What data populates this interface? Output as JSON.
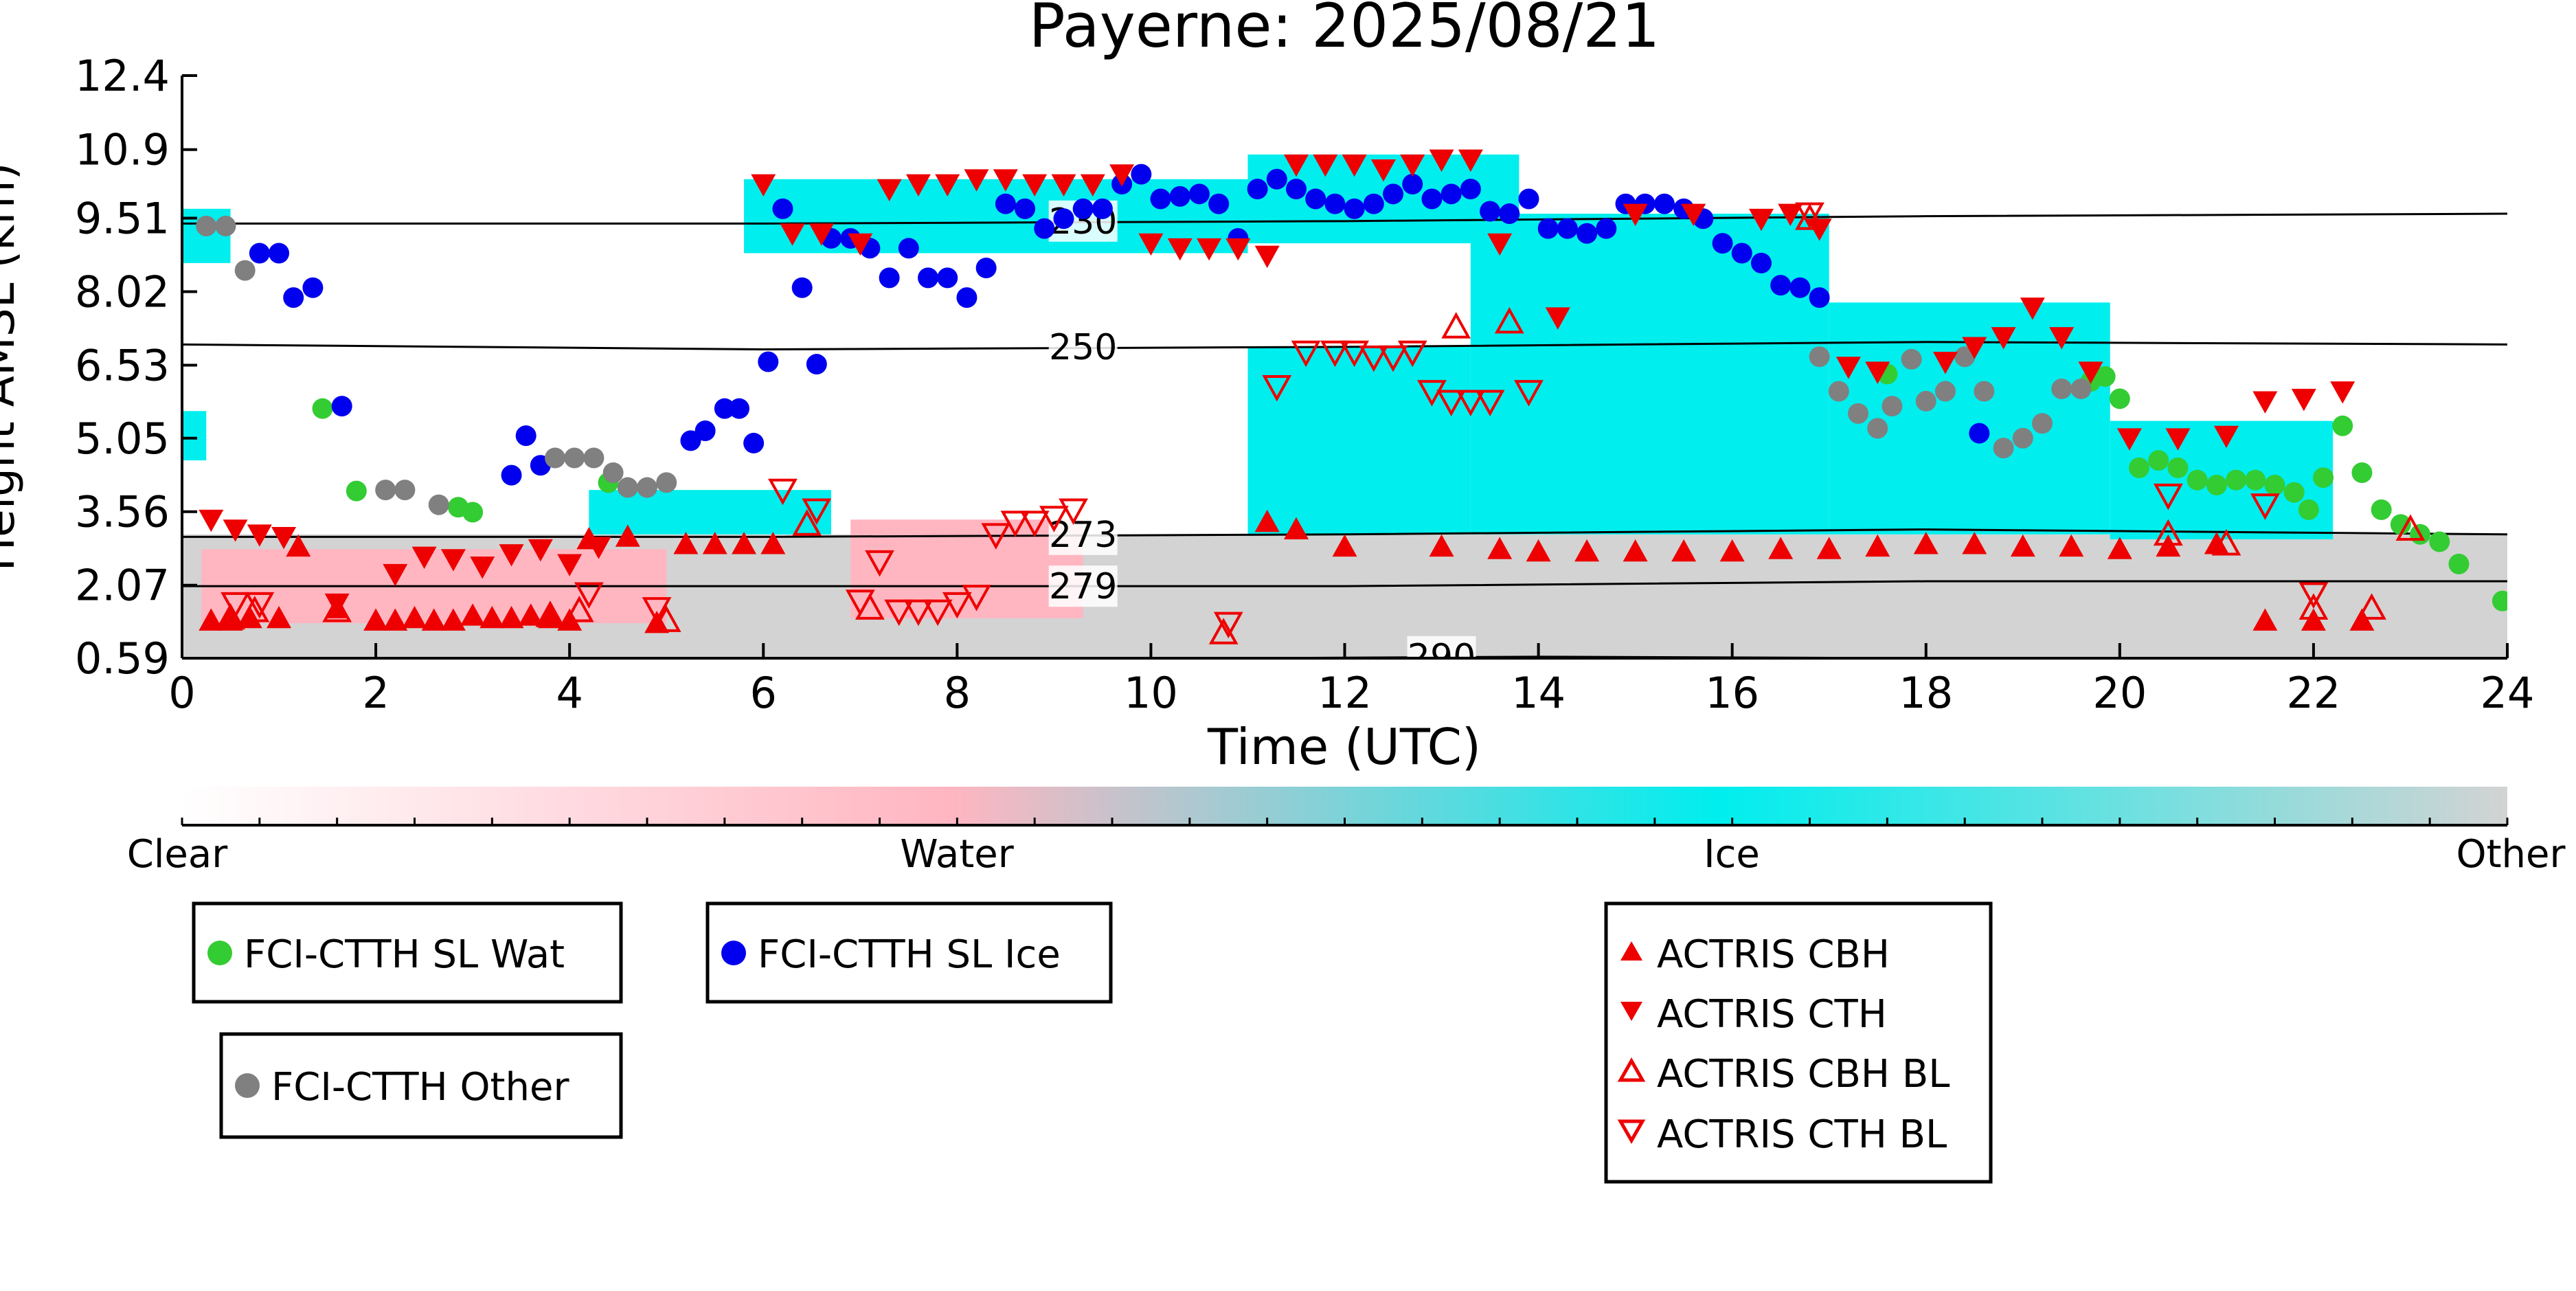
{
  "chart_data": {
    "type": "scatter",
    "title": "Payerne: 2025/08/21",
    "xlabel": "Time (UTC)",
    "ylabel": "Height AMSL (km)",
    "xlim": [
      0,
      24
    ],
    "ylim": [
      0.59,
      12.4
    ],
    "x_ticks": [
      0,
      2,
      4,
      6,
      8,
      10,
      12,
      14,
      16,
      18,
      20,
      22,
      24
    ],
    "y_ticks": [
      0.59,
      2.07,
      3.56,
      5.05,
      6.53,
      8.02,
      9.51,
      10.9,
      12.4
    ],
    "y_tick_labels": [
      "0.59",
      "2.07",
      "3.56",
      "5.05",
      "6.53",
      "8.02",
      "9.51",
      "10.9",
      "12.4"
    ],
    "background_field": {
      "description": "cloud-phase classification shading",
      "colorbar_labels": [
        "Clear",
        "Water",
        "Ice",
        "Other"
      ],
      "colors": {
        "Clear": "#ffffff",
        "Water": "#ffb6c1",
        "Ice": "#00eeee",
        "Other": "#d3d3d3"
      },
      "regions": [
        {
          "phase": "Other",
          "x": [
            0,
            24
          ],
          "y": [
            0.59,
            3.1
          ]
        },
        {
          "phase": "Water",
          "x": [
            0.2,
            5.0
          ],
          "y": [
            1.3,
            2.8
          ]
        },
        {
          "phase": "Water",
          "x": [
            6.9,
            9.3
          ],
          "y": [
            1.4,
            3.4
          ]
        },
        {
          "phase": "Ice",
          "x": [
            0,
            0.5
          ],
          "y": [
            8.6,
            9.7
          ]
        },
        {
          "phase": "Ice",
          "x": [
            0,
            0.25
          ],
          "y": [
            4.6,
            5.6
          ]
        },
        {
          "phase": "Ice",
          "x": [
            4.2,
            6.7
          ],
          "y": [
            3.1,
            4.0
          ]
        },
        {
          "phase": "Ice",
          "x": [
            5.8,
            11.0
          ],
          "y": [
            8.8,
            10.3
          ]
        },
        {
          "phase": "Ice",
          "x": [
            11.0,
            13.3
          ],
          "y": [
            3.1,
            6.9
          ]
        },
        {
          "phase": "Ice",
          "x": [
            11.0,
            13.8
          ],
          "y": [
            9.0,
            10.8
          ]
        },
        {
          "phase": "Ice",
          "x": [
            13.3,
            17.0
          ],
          "y": [
            3.1,
            9.6
          ]
        },
        {
          "phase": "Ice",
          "x": [
            17.0,
            19.9
          ],
          "y": [
            3.1,
            7.8
          ]
        },
        {
          "phase": "Ice",
          "x": [
            19.9,
            22.2
          ],
          "y": [
            3.0,
            5.4
          ]
        }
      ]
    },
    "isotherms": [
      {
        "label": "230",
        "x": [
          0,
          6,
          12,
          18,
          24
        ],
        "y": [
          9.4,
          9.4,
          9.45,
          9.55,
          9.6
        ]
      },
      {
        "label": "250",
        "x": [
          0,
          6,
          12,
          18,
          24
        ],
        "y": [
          6.95,
          6.85,
          6.9,
          7.0,
          6.95
        ]
      },
      {
        "label": "273",
        "x": [
          0,
          6,
          12,
          18,
          24
        ],
        "y": [
          3.05,
          3.05,
          3.1,
          3.2,
          3.1
        ]
      },
      {
        "label": "279",
        "x": [
          0,
          6,
          12,
          18,
          24
        ],
        "y": [
          2.05,
          2.05,
          2.05,
          2.15,
          2.15
        ]
      },
      {
        "label": "290",
        "x": [
          11.0,
          14.0,
          18.0
        ],
        "y": [
          0.59,
          0.62,
          0.59
        ]
      }
    ],
    "series": [
      {
        "name": "FCI-CTTH SL Wat",
        "marker": "circle",
        "color": "#33cc33",
        "x": [
          1.45,
          1.8,
          2.85,
          3.0,
          4.4,
          17.6,
          19.7,
          19.85,
          20.0,
          20.2,
          20.4,
          20.6,
          20.8,
          21.0,
          21.2,
          21.4,
          21.6,
          21.8,
          21.95,
          22.1,
          22.3,
          22.5,
          22.7,
          22.9,
          23.1,
          23.3,
          23.5,
          23.95
        ],
        "y": [
          5.65,
          3.98,
          3.65,
          3.55,
          4.15,
          6.35,
          6.2,
          6.3,
          5.85,
          4.45,
          4.6,
          4.45,
          4.2,
          4.1,
          4.2,
          4.2,
          4.1,
          3.95,
          3.6,
          4.25,
          5.3,
          4.35,
          3.6,
          3.3,
          3.1,
          2.95,
          2.5,
          1.75
        ]
      },
      {
        "name": "FCI-CTTH SL Ice",
        "marker": "circle",
        "color": "#0000ee",
        "x": [
          0.8,
          1.0,
          1.15,
          1.35,
          1.65,
          3.4,
          3.55,
          3.7,
          5.25,
          5.4,
          5.6,
          5.75,
          5.9,
          6.05,
          6.2,
          6.4,
          6.55,
          6.7,
          6.9,
          7.1,
          7.3,
          7.5,
          7.7,
          7.9,
          8.1,
          8.3,
          8.5,
          8.7,
          8.9,
          9.1,
          9.3,
          9.5,
          9.7,
          9.9,
          10.1,
          10.3,
          10.5,
          10.7,
          10.9,
          11.1,
          11.3,
          11.5,
          11.7,
          11.9,
          12.1,
          12.3,
          12.5,
          12.7,
          12.9,
          13.1,
          13.3,
          13.5,
          13.7,
          13.9,
          14.1,
          14.3,
          14.5,
          14.7,
          14.9,
          15.1,
          15.3,
          15.5,
          15.7,
          15.9,
          16.1,
          16.3,
          16.5,
          16.7,
          16.9,
          18.55
        ],
        "y": [
          8.8,
          8.8,
          7.9,
          8.1,
          5.7,
          4.3,
          5.1,
          4.5,
          5.0,
          5.2,
          5.65,
          5.65,
          4.95,
          6.6,
          9.7,
          8.1,
          6.55,
          9.1,
          9.1,
          8.9,
          8.3,
          8.9,
          8.3,
          8.3,
          7.9,
          8.5,
          9.8,
          9.7,
          9.3,
          9.5,
          9.7,
          9.7,
          10.2,
          10.4,
          9.9,
          9.95,
          10.0,
          9.8,
          9.1,
          10.1,
          10.3,
          10.1,
          9.9,
          9.8,
          9.7,
          9.8,
          10.0,
          10.2,
          9.9,
          10.0,
          10.1,
          9.65,
          9.6,
          9.9,
          9.3,
          9.3,
          9.2,
          9.3,
          9.8,
          9.8,
          9.8,
          9.7,
          9.5,
          9.0,
          8.8,
          8.6,
          8.15,
          8.1,
          7.9,
          5.15
        ]
      },
      {
        "name": "FCI-CTTH Other",
        "marker": "circle",
        "color": "#808080",
        "x": [
          0.25,
          0.45,
          0.65,
          2.1,
          2.3,
          2.65,
          3.85,
          4.05,
          4.25,
          4.45,
          4.6,
          4.8,
          5.0,
          16.9,
          17.1,
          17.3,
          17.5,
          17.65,
          17.85,
          18.0,
          18.2,
          18.4,
          18.6,
          18.8,
          19.0,
          19.2,
          19.4,
          19.6
        ],
        "y": [
          9.35,
          9.35,
          8.45,
          4.0,
          4.0,
          3.7,
          4.65,
          4.65,
          4.65,
          4.35,
          4.05,
          4.05,
          4.15,
          6.7,
          6.0,
          5.55,
          5.25,
          5.7,
          6.65,
          5.8,
          6.0,
          6.7,
          6.0,
          4.85,
          5.05,
          5.35,
          6.05,
          6.05
        ]
      },
      {
        "name": "ACTRIS CBH",
        "marker": "triangle-up",
        "color": "#ee0000",
        "filled": true,
        "x": [
          0.3,
          0.5,
          0.7,
          1.0,
          1.2,
          1.6,
          2.0,
          2.2,
          2.4,
          2.6,
          2.8,
          3.0,
          3.2,
          3.4,
          3.6,
          3.8,
          4.0,
          4.2,
          4.6,
          4.9,
          5.2,
          5.5,
          5.8,
          6.1,
          11.2,
          11.5,
          12.0,
          13.0,
          13.6,
          14.0,
          14.5,
          15.0,
          15.5,
          16.0,
          16.5,
          17.0,
          17.5,
          18.0,
          18.5,
          19.0,
          19.5,
          20.0,
          20.5,
          21.0,
          21.5,
          22.0,
          22.5
        ],
        "y": [
          1.35,
          1.35,
          1.4,
          1.4,
          2.85,
          1.6,
          1.35,
          1.35,
          1.4,
          1.35,
          1.35,
          1.45,
          1.4,
          1.4,
          1.45,
          1.4,
          1.35,
          3.0,
          3.05,
          1.3,
          2.9,
          2.9,
          2.9,
          2.9,
          3.35,
          3.2,
          2.85,
          2.85,
          2.8,
          2.75,
          2.75,
          2.75,
          2.75,
          2.75,
          2.8,
          2.8,
          2.85,
          2.9,
          2.9,
          2.85,
          2.85,
          2.8,
          2.85,
          2.9,
          1.35,
          1.35,
          1.35
        ]
      },
      {
        "name": "ACTRIS CTH",
        "marker": "triangle-down",
        "color": "#ee0000",
        "filled": true,
        "x": [
          0.3,
          0.55,
          0.8,
          1.05,
          1.6,
          2.2,
          2.5,
          2.8,
          3.1,
          3.4,
          3.7,
          4.0,
          4.3,
          6.0,
          6.3,
          6.6,
          7.0,
          7.3,
          7.6,
          7.9,
          8.2,
          8.5,
          8.8,
          9.1,
          9.4,
          9.7,
          10.0,
          10.3,
          10.6,
          10.9,
          11.2,
          11.5,
          11.8,
          12.1,
          12.4,
          12.7,
          13.0,
          13.3,
          13.6,
          14.2,
          15.0,
          15.6,
          16.3,
          16.6,
          16.9,
          17.2,
          17.5,
          18.2,
          18.5,
          18.8,
          19.1,
          19.4,
          19.7,
          20.1,
          20.6,
          21.1,
          21.5,
          21.9,
          22.3
        ],
        "y": [
          3.4,
          3.2,
          3.1,
          3.05,
          1.7,
          2.3,
          2.65,
          2.6,
          2.45,
          2.7,
          2.8,
          2.5,
          2.85,
          10.2,
          9.2,
          9.2,
          9.0,
          10.1,
          10.2,
          10.2,
          10.3,
          10.3,
          10.2,
          10.2,
          10.2,
          10.4,
          9.0,
          8.9,
          8.9,
          8.9,
          8.75,
          10.6,
          10.6,
          10.6,
          10.5,
          10.6,
          10.7,
          10.7,
          9.0,
          7.5,
          9.6,
          9.6,
          9.5,
          9.6,
          9.3,
          6.5,
          6.4,
          6.6,
          6.9,
          7.1,
          7.7,
          7.1,
          6.4,
          5.05,
          5.05,
          5.1,
          5.8,
          5.85,
          6.0
        ]
      },
      {
        "name": "ACTRIS CBH BL",
        "marker": "triangle-up",
        "color": "#ee0000",
        "filled": false,
        "x": [
          0.5,
          0.75,
          1.6,
          3.8,
          4.1,
          5.0,
          6.45,
          7.1,
          10.75,
          13.15,
          13.7,
          16.8,
          20.5,
          21.1,
          22.0,
          22.6,
          23.0
        ],
        "y": [
          1.4,
          1.55,
          1.55,
          1.45,
          1.55,
          1.35,
          3.3,
          1.6,
          1.1,
          7.3,
          7.4,
          9.5,
          3.1,
          2.9,
          1.6,
          1.6,
          3.2
        ]
      },
      {
        "name": "ACTRIS CTH BL",
        "marker": "triangle-down",
        "color": "#ee0000",
        "filled": false,
        "x": [
          0.55,
          0.8,
          4.2,
          4.9,
          6.2,
          6.55,
          7.0,
          7.2,
          7.4,
          7.6,
          7.8,
          8.0,
          8.2,
          8.4,
          8.6,
          8.8,
          9.0,
          9.2,
          10.8,
          11.3,
          11.6,
          11.9,
          12.1,
          12.3,
          12.5,
          12.7,
          12.9,
          13.1,
          13.3,
          13.5,
          13.9,
          16.8,
          20.5,
          21.5,
          22.0
        ],
        "y": [
          1.7,
          1.7,
          1.9,
          1.6,
          4.0,
          3.6,
          1.75,
          2.55,
          1.55,
          1.55,
          1.55,
          1.7,
          1.85,
          3.1,
          3.35,
          3.35,
          3.45,
          3.6,
          1.3,
          6.1,
          6.8,
          6.8,
          6.8,
          6.7,
          6.7,
          6.8,
          6.0,
          5.8,
          5.8,
          5.8,
          6.0,
          9.6,
          3.9,
          3.7,
          1.9
        ]
      }
    ],
    "colorbar": {
      "labels": [
        "Clear",
        "Water",
        "Ice",
        "Other"
      ],
      "colors": [
        "#ffffff",
        "#ffb6c1",
        "#00eeee",
        "#d3d3d3"
      ]
    },
    "legend_placement": "below plot, four boxes"
  }
}
